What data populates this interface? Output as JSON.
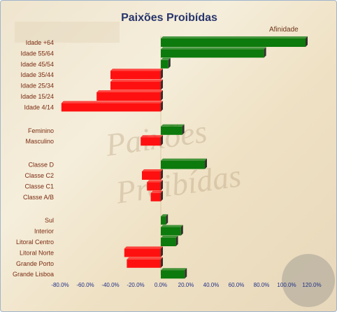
{
  "chart_data": {
    "type": "bar",
    "orientation": "horizontal",
    "title": "Paixões Proibídas",
    "legend": [
      "Afinidade"
    ],
    "legend_position": "top-right",
    "xlim": [
      -80,
      120
    ],
    "x_ticks": [
      "-80.0%",
      "-60.0%",
      "-40.0%",
      "-20.0%",
      "0.0%",
      "20.0%",
      "40.0%",
      "60.0%",
      "80.0%",
      "100.0%",
      "120.0%"
    ],
    "colors": {
      "positive": "#0c7a0c",
      "negative": "#ff1010"
    },
    "categories": [
      "Idade +64",
      "Idade 55/64",
      "Idade 45/54",
      "Idade 35/44",
      "Idade 25/34",
      "Idade 15/24",
      "Idade 4/14",
      "Feminino",
      "Masculino",
      "Classe D",
      "Classe C2",
      "Classe C1",
      "Classe A/B",
      "Sul",
      "Interior",
      "Litoral Centro",
      "Litoral Norte",
      "Grande Porto",
      "Grande Lisboa"
    ],
    "groups": [
      7,
      2,
      4,
      6
    ],
    "values": [
      115,
      82,
      6,
      -40,
      -40,
      -51,
      -79,
      17,
      -16,
      35,
      -15,
      -11,
      -8,
      4,
      16,
      12,
      -29,
      -27,
      19
    ]
  }
}
